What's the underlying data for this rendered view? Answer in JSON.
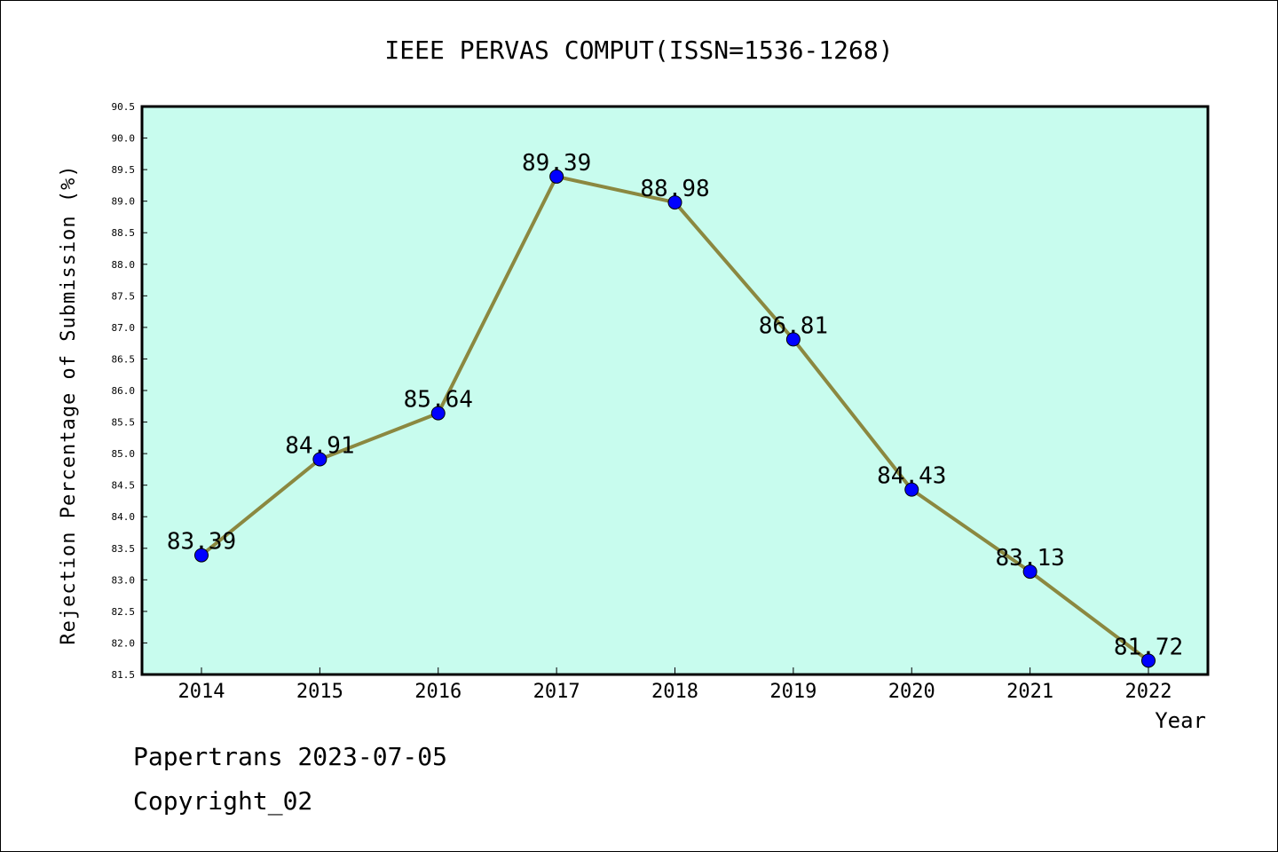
{
  "chart_data": {
    "type": "line",
    "title": "IEEE PERVAS COMPUT(ISSN=1536-1268)",
    "xlabel": "Year",
    "ylabel": "Rejection Percentage of Submission (%)",
    "categories": [
      "2014",
      "2015",
      "2016",
      "2017",
      "2018",
      "2019",
      "2020",
      "2021",
      "2022"
    ],
    "series": [
      {
        "values": [
          83.39,
          84.91,
          85.64,
          89.39,
          88.98,
          86.81,
          84.43,
          83.13,
          81.72
        ],
        "labels": [
          "83.39",
          "84.91",
          "85.64",
          "89.39",
          "88.98",
          "86.81",
          "84.43",
          "83.13",
          "81.72"
        ]
      }
    ],
    "ylim": [
      81.5,
      90.5
    ],
    "yticks": [
      "81.5",
      "82.0",
      "82.5",
      "83.0",
      "83.5",
      "84.0",
      "84.5",
      "85.0",
      "85.5",
      "86.0",
      "86.5",
      "87.0",
      "87.5",
      "88.0",
      "88.5",
      "89.0",
      "89.5",
      "90.0",
      "90.5"
    ],
    "grid": false,
    "colors": {
      "plot_background": "#c8fcee",
      "line": "#8b8840",
      "marker": "#0000ff"
    }
  },
  "footer": {
    "line1": "Papertrans 2023-07-05",
    "line2": "Copyright_02"
  }
}
